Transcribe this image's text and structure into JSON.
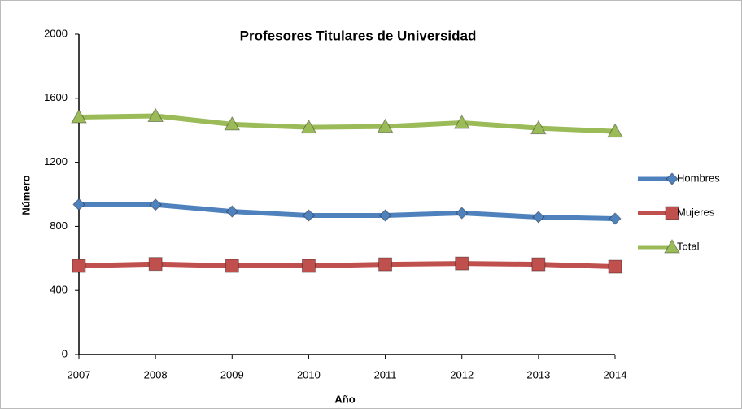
{
  "chart_data": {
    "type": "line",
    "title": "Profesores Titulares de Universidad",
    "x_label": "Año",
    "y_label": "Número",
    "categories": [
      "2007",
      "2008",
      "2009",
      "2010",
      "2011",
      "2012",
      "2013",
      "2014"
    ],
    "series": [
      {
        "name": "Hombres",
        "color": "#4F81BD",
        "marker": "diamond",
        "values": [
          937,
          935,
          893,
          868,
          868,
          883,
          858,
          848
        ]
      },
      {
        "name": "Mujeres",
        "color": "#C0504D",
        "marker": "square",
        "values": [
          553,
          565,
          553,
          553,
          563,
          568,
          563,
          548
        ]
      },
      {
        "name": "Total",
        "color": "#9BBB59",
        "marker": "triangle",
        "values": [
          1482,
          1490,
          1437,
          1418,
          1423,
          1447,
          1413,
          1393
        ]
      }
    ],
    "ylim": [
      0,
      2000
    ],
    "yticks": [
      0,
      400,
      800,
      1200,
      1600,
      2000
    ],
    "grid": false,
    "legend": "right"
  }
}
